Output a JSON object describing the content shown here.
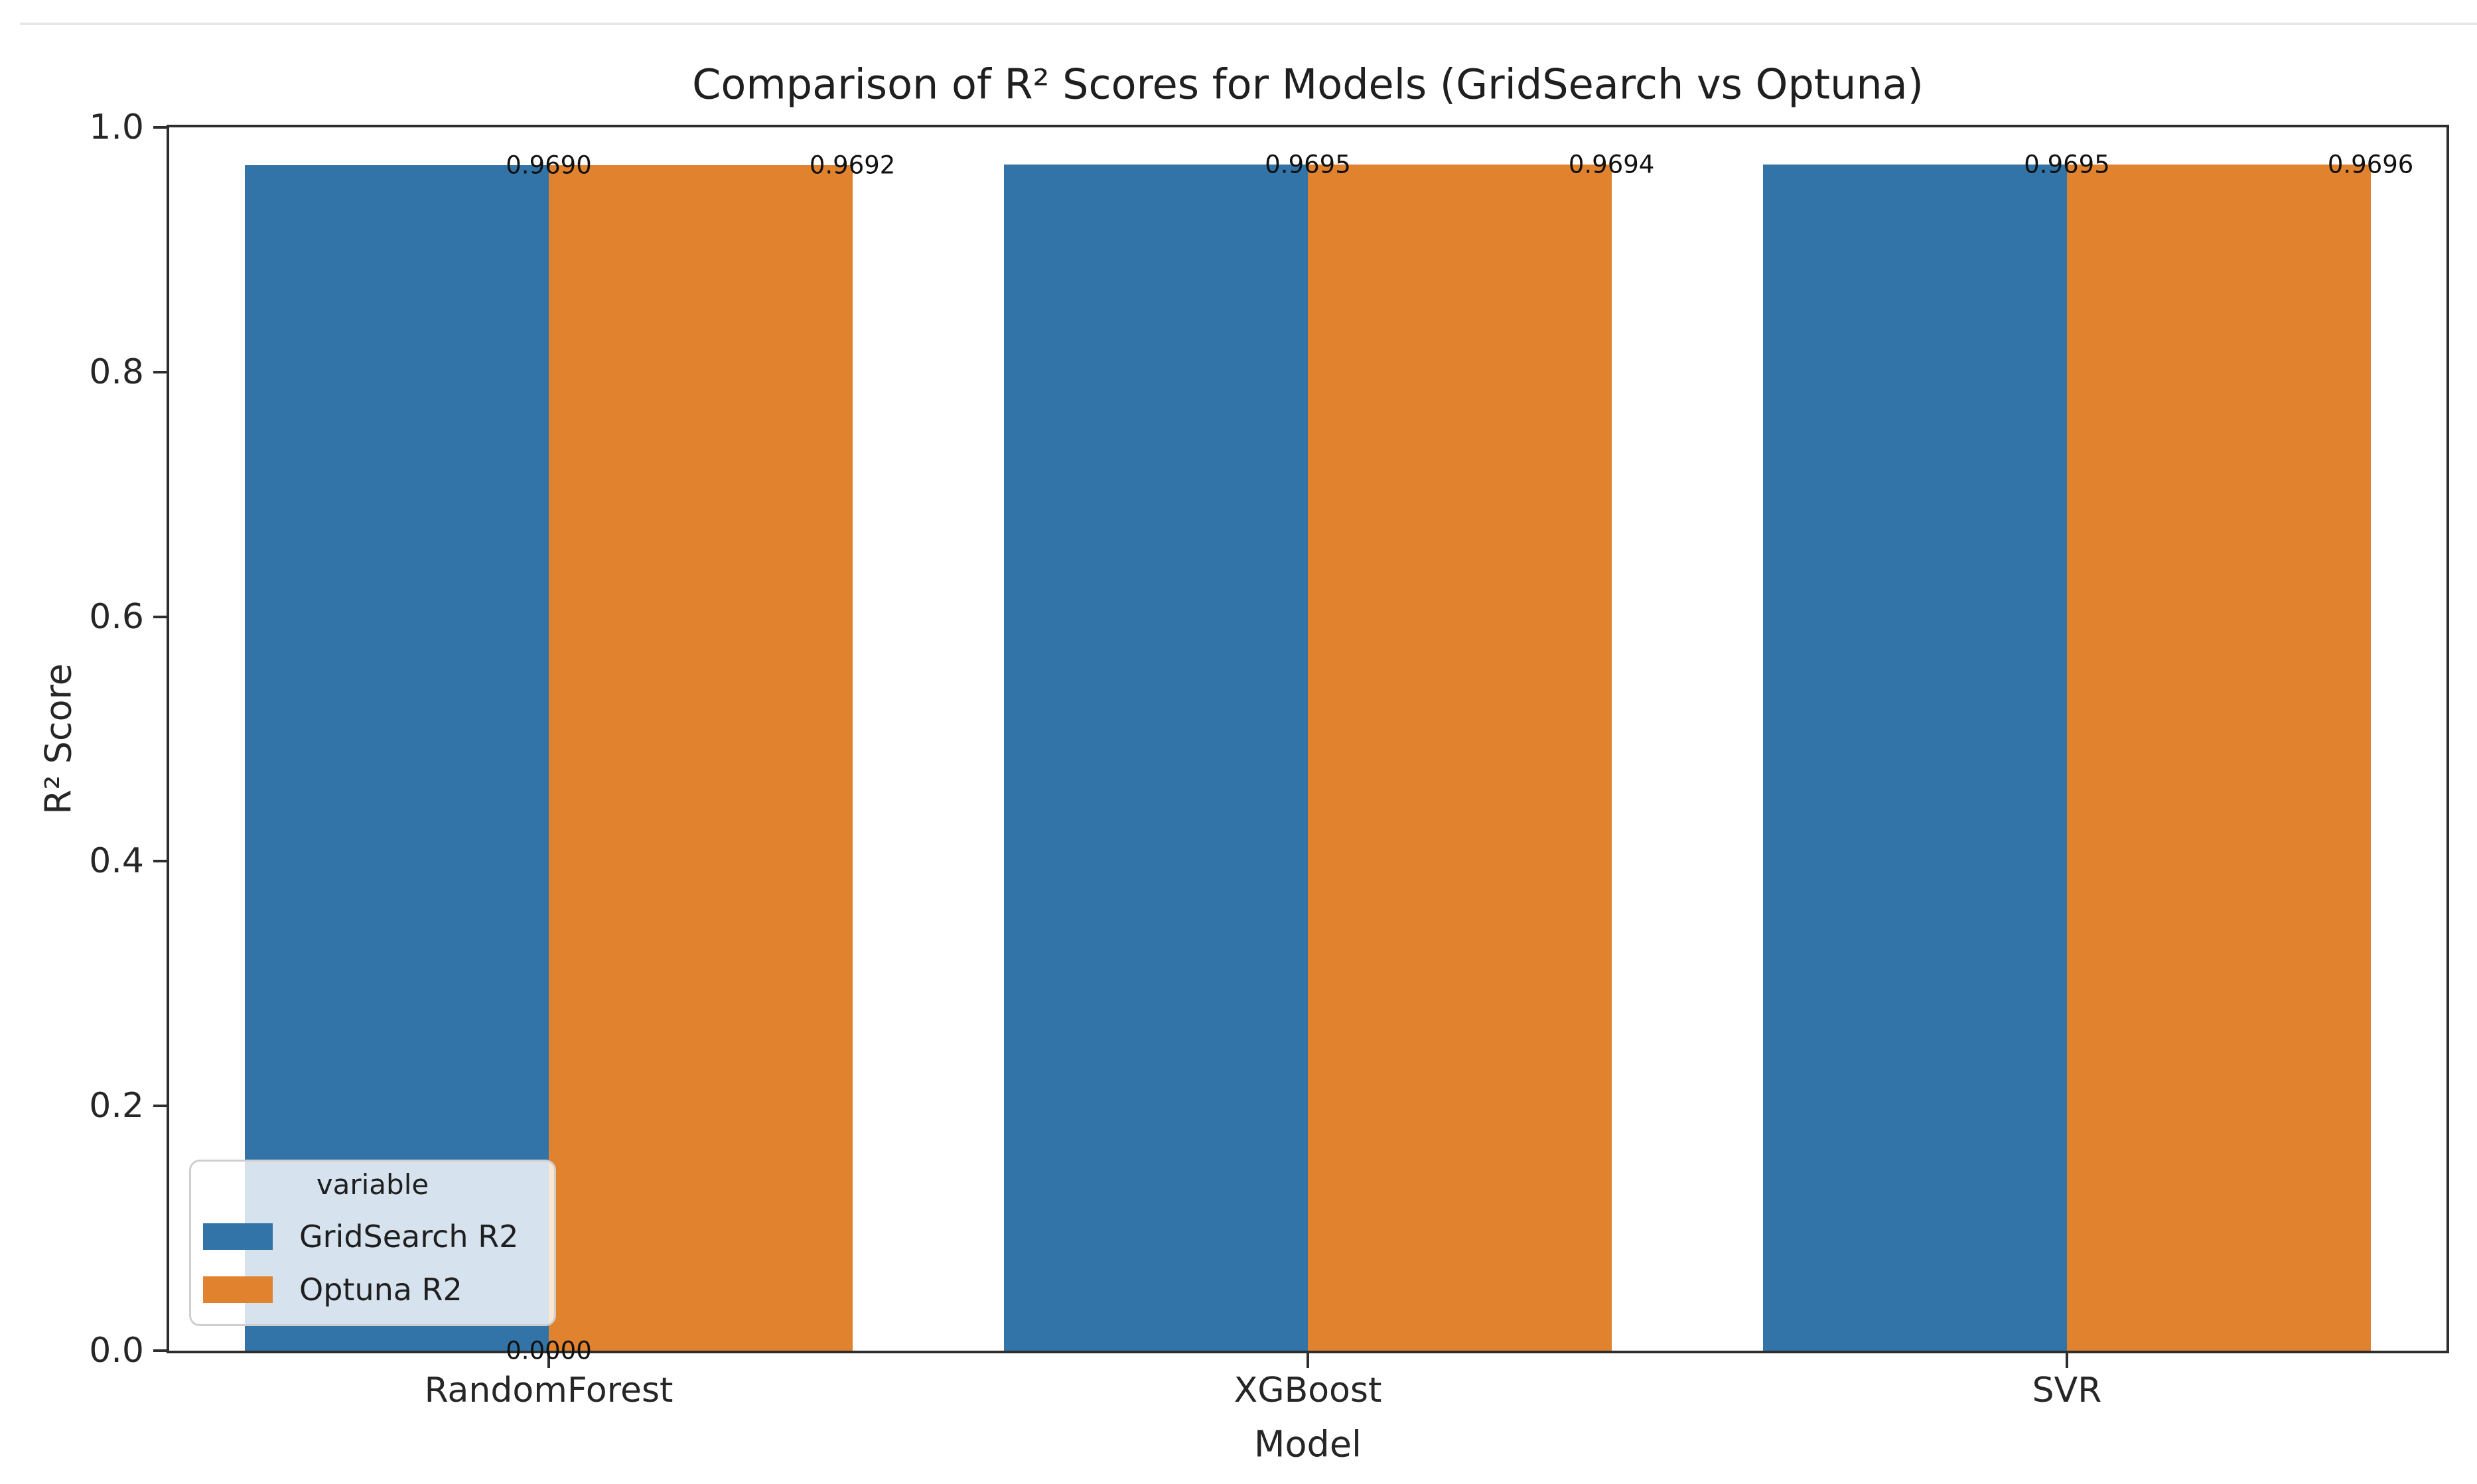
{
  "chart_data": {
    "type": "bar",
    "title": "Comparison of R² Scores for Models (GridSearch vs Optuna)",
    "xlabel": "Model",
    "ylabel": "R² Score",
    "categories": [
      "RandomForest",
      "XGBoost",
      "SVR"
    ],
    "series": [
      {
        "name": "GridSearch R2",
        "color": "#3274a8",
        "values": [
          0.969,
          0.9695,
          0.9695
        ],
        "labels": [
          "0.9690",
          "0.9695",
          "0.9695"
        ]
      },
      {
        "name": "Optuna R2",
        "color": "#e0822e",
        "values": [
          0.9692,
          0.9694,
          0.9696
        ],
        "labels": [
          "0.9692",
          "0.9694",
          "0.9696"
        ]
      }
    ],
    "extra_annotations": [
      {
        "text": "0.0000",
        "category_index": 0,
        "value": 0.0
      }
    ],
    "ylim": [
      0.0,
      1.0
    ],
    "yticks": [
      "0.0",
      "0.2",
      "0.4",
      "0.6",
      "0.8",
      "1.0"
    ],
    "grid": false,
    "legend": {
      "title": "variable",
      "position": "lower left",
      "entries": [
        "GridSearch R2",
        "Optuna R2"
      ]
    },
    "colors": {
      "spine": "#2e2e2e",
      "text": "#262626"
    }
  }
}
